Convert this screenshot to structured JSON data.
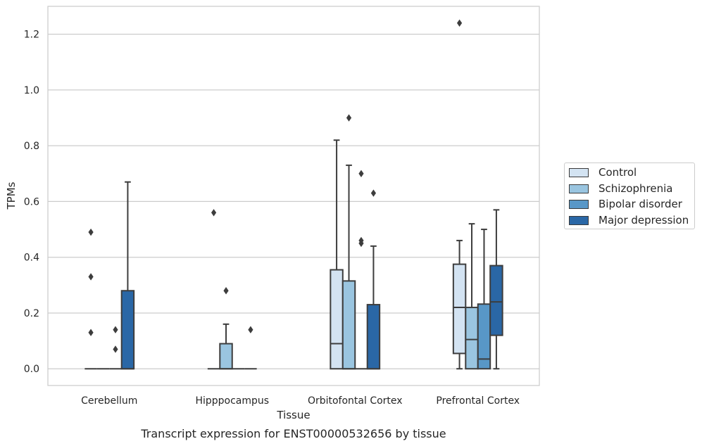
{
  "chart_data": {
    "type": "box",
    "caption": "Transcript expression for ENST00000532656 by tissue",
    "xlabel": "Tissue",
    "ylabel": "TPMs",
    "ylim": [
      -0.06,
      1.3
    ],
    "yticks": [
      "0.0",
      "0.2",
      "0.4",
      "0.6",
      "0.8",
      "1.0",
      "1.2"
    ],
    "grid": "horizontal",
    "legend_position": "right",
    "categories": [
      "Cerebellum",
      "Hipppocampus",
      "Orbitofontal Cortex",
      "Prefrontal Cortex"
    ],
    "series": [
      {
        "name": "Control",
        "color": "#d3e3f2",
        "boxes": [
          {
            "q1": 0,
            "median": 0,
            "q3": 0,
            "whisker_low": 0,
            "whisker_high": 0,
            "outliers": [
              0.49,
              0.33,
              0.13
            ]
          },
          {
            "q1": 0,
            "median": 0,
            "q3": 0,
            "whisker_low": 0,
            "whisker_high": 0,
            "outliers": [
              0.56
            ]
          },
          {
            "q1": 0,
            "median": 0.09,
            "q3": 0.355,
            "whisker_low": 0,
            "whisker_high": 0.82,
            "outliers": []
          },
          {
            "q1": 0.055,
            "median": 0.22,
            "q3": 0.375,
            "whisker_low": 0,
            "whisker_high": 0.46,
            "outliers": [
              1.24
            ]
          }
        ]
      },
      {
        "name": "Schizophrenia",
        "color": "#9ac5e0",
        "boxes": [
          {
            "q1": 0,
            "median": 0,
            "q3": 0,
            "whisker_low": 0,
            "whisker_high": 0,
            "outliers": []
          },
          {
            "q1": 0,
            "median": 0,
            "q3": 0.09,
            "whisker_low": 0,
            "whisker_high": 0.16,
            "outliers": [
              0.28
            ]
          },
          {
            "q1": 0,
            "median": 0,
            "q3": 0.315,
            "whisker_low": 0,
            "whisker_high": 0.73,
            "outliers": [
              0.9
            ]
          },
          {
            "q1": 0,
            "median": 0.105,
            "q3": 0.22,
            "whisker_low": 0,
            "whisker_high": 0.52,
            "outliers": []
          }
        ]
      },
      {
        "name": "Bipolar disorder",
        "color": "#5897c7",
        "boxes": [
          {
            "q1": 0,
            "median": 0,
            "q3": 0,
            "whisker_low": 0,
            "whisker_high": 0,
            "outliers": [
              0.14,
              0.07
            ]
          },
          {
            "q1": 0,
            "median": 0,
            "q3": 0,
            "whisker_low": 0,
            "whisker_high": 0,
            "outliers": []
          },
          {
            "q1": 0,
            "median": 0,
            "q3": 0,
            "whisker_low": 0,
            "whisker_high": 0,
            "outliers": [
              0.7,
              0.46,
              0.45
            ]
          },
          {
            "q1": 0,
            "median": 0.035,
            "q3": 0.232,
            "whisker_low": 0,
            "whisker_high": 0.5,
            "outliers": []
          }
        ]
      },
      {
        "name": "Major depression",
        "color": "#2a67a6",
        "boxes": [
          {
            "q1": 0,
            "median": 0,
            "q3": 0.28,
            "whisker_low": 0,
            "whisker_high": 0.67,
            "outliers": []
          },
          {
            "q1": 0,
            "median": 0,
            "q3": 0,
            "whisker_low": 0,
            "whisker_high": 0,
            "outliers": [
              0.14
            ]
          },
          {
            "q1": 0,
            "median": 0,
            "q3": 0.23,
            "whisker_low": 0,
            "whisker_high": 0.44,
            "outliers": [
              0.63
            ]
          },
          {
            "q1": 0.12,
            "median": 0.24,
            "q3": 0.37,
            "whisker_low": 0,
            "whisker_high": 0.57,
            "outliers": []
          }
        ]
      }
    ]
  }
}
